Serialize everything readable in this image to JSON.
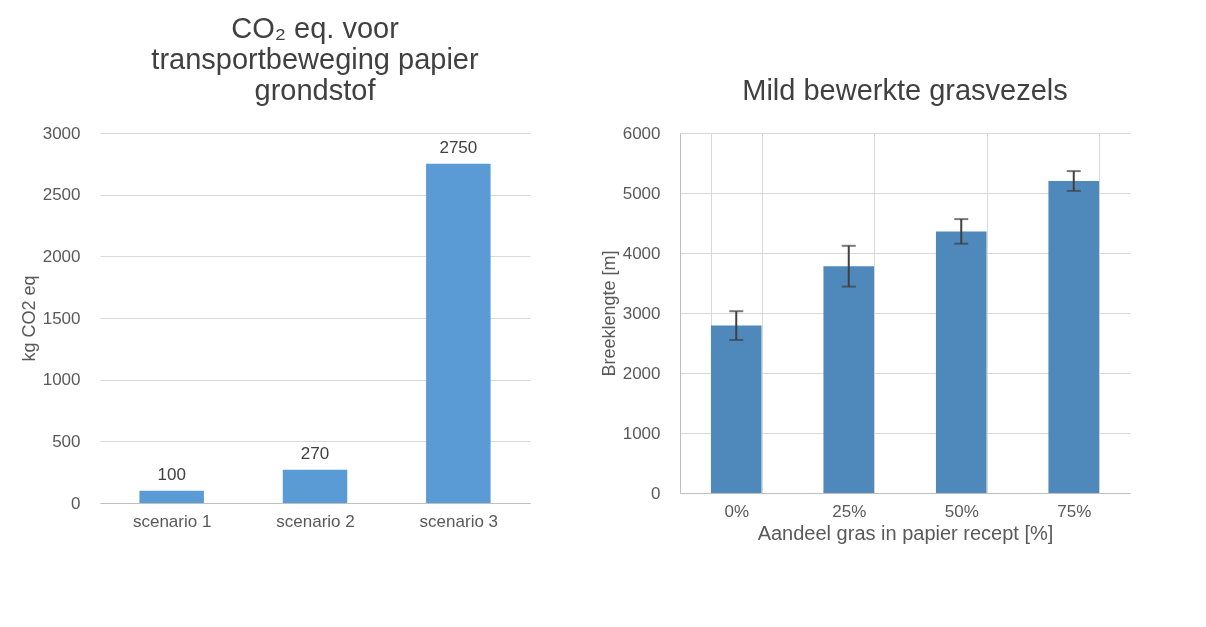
{
  "chart_data": [
    {
      "type": "bar",
      "title": "CO₂ eq. voor transportbeweging papier grondstof",
      "ylabel": "kg CO2 eq",
      "categories": [
        "scenario 1",
        "scenario 2",
        "scenario 3"
      ],
      "values": [
        100,
        270,
        2750
      ],
      "color": "#5b9bd5",
      "ylim": [
        0,
        3000
      ],
      "yticks": [
        0,
        500,
        1000,
        1500,
        2000,
        2500,
        3000
      ],
      "grid": "y",
      "data_labels": true
    },
    {
      "type": "bar",
      "title": "Mild bewerkte grasvezels",
      "ylabel": "Breeklengte [m]",
      "xlabel": "Aandeel gras in papier recept [%]",
      "categories": [
        "0%",
        "25%",
        "50%",
        "75%"
      ],
      "values": [
        2790,
        3780,
        4360,
        5200
      ],
      "errors": [
        240,
        340,
        205,
        165
      ],
      "color": "#4f88bb",
      "ylim": [
        0,
        6000
      ],
      "yticks": [
        0,
        1000,
        2000,
        3000,
        4000,
        5000,
        6000
      ],
      "grid": true
    }
  ]
}
